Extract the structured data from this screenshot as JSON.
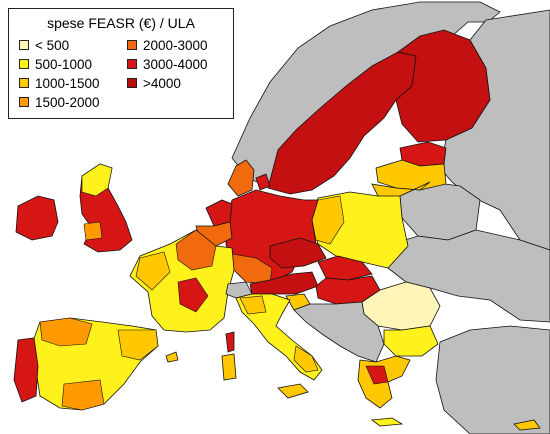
{
  "legend": {
    "title": "spese FEASR (€) / ULA",
    "items": [
      {
        "label": "< 500",
        "color": "#FFF5B8"
      },
      {
        "label": "500-1000",
        "color": "#FFF21C"
      },
      {
        "label": "1000-1500",
        "color": "#FFC800"
      },
      {
        "label": "1500-2000",
        "color": "#FF9A00"
      },
      {
        "label": "2000-3000",
        "color": "#F26A0E"
      },
      {
        "label": "3000-4000",
        "color": "#D61515"
      },
      {
        "label": ">4000",
        "color": "#B80E0E"
      }
    ]
  },
  "colors": {
    "no_data": "#BEBEBE",
    "border": "#111111",
    "background": "#FFFFFF"
  }
}
